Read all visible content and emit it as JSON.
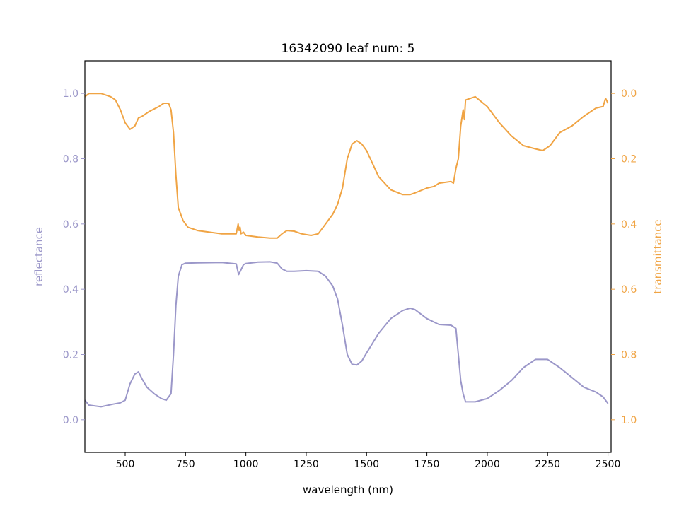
{
  "chart_data": {
    "type": "line",
    "title": "16342090 leaf num: 5",
    "xlabel": "wavelength (nm)",
    "ylabel_left": "reflectance",
    "ylabel_right": "transmittance",
    "xlim": [
      333,
      2513
    ],
    "ylim_left": [
      -0.1,
      1.1
    ],
    "ylim_right_inverted": [
      1.1,
      -0.1
    ],
    "x_ticks": [
      500,
      750,
      1000,
      1250,
      1500,
      1750,
      2000,
      2250,
      2500
    ],
    "y_ticks_left": [
      0.0,
      0.2,
      0.4,
      0.6,
      0.8,
      1.0
    ],
    "y_ticks_left_labels": [
      "0.0",
      "0.2",
      "0.4",
      "0.6",
      "0.8",
      "1.0"
    ],
    "y_ticks_right": [
      0.0,
      0.2,
      0.4,
      0.6,
      0.8,
      1.0
    ],
    "y_ticks_right_labels": [
      "0.0",
      "0.2",
      "0.4",
      "0.6",
      "0.8",
      "1.0"
    ],
    "grid": false,
    "colors": {
      "reflectance": "#9b97c9",
      "transmittance": "#f0a444",
      "axes": "#000000"
    },
    "series": [
      {
        "axis": "left",
        "x": [
          333,
          350,
          400,
          450,
          480,
          500,
          520,
          540,
          555,
          570,
          590,
          620,
          650,
          670,
          690,
          700,
          710,
          720,
          735,
          750,
          800,
          900,
          960,
          970,
          980,
          990,
          1000,
          1050,
          1100,
          1130,
          1150,
          1170,
          1200,
          1250,
          1300,
          1330,
          1360,
          1380,
          1400,
          1420,
          1440,
          1460,
          1480,
          1500,
          1550,
          1600,
          1650,
          1680,
          1700,
          1750,
          1800,
          1850,
          1870,
          1880,
          1890,
          1900,
          1910,
          1950,
          2000,
          2050,
          2100,
          2150,
          2200,
          2250,
          2300,
          2350,
          2400,
          2450,
          2480,
          2500
        ],
        "y": [
          0.06,
          0.045,
          0.04,
          0.048,
          0.052,
          0.06,
          0.11,
          0.14,
          0.147,
          0.125,
          0.1,
          0.08,
          0.065,
          0.06,
          0.08,
          0.2,
          0.35,
          0.44,
          0.475,
          0.48,
          0.481,
          0.482,
          0.478,
          0.445,
          0.46,
          0.475,
          0.479,
          0.483,
          0.484,
          0.48,
          0.462,
          0.455,
          0.455,
          0.457,
          0.455,
          0.44,
          0.41,
          0.37,
          0.29,
          0.2,
          0.17,
          0.168,
          0.18,
          0.205,
          0.265,
          0.31,
          0.335,
          0.342,
          0.338,
          0.31,
          0.292,
          0.29,
          0.28,
          0.2,
          0.12,
          0.08,
          0.055,
          0.055,
          0.065,
          0.09,
          0.12,
          0.16,
          0.185,
          0.185,
          0.16,
          0.13,
          0.1,
          0.085,
          0.07,
          0.05
        ]
      },
      {
        "axis": "right",
        "x": [
          333,
          350,
          400,
          440,
          460,
          480,
          500,
          520,
          540,
          555,
          570,
          600,
          640,
          660,
          680,
          690,
          700,
          710,
          720,
          740,
          760,
          800,
          900,
          960,
          968,
          972,
          976,
          980,
          990,
          1000,
          1050,
          1100,
          1130,
          1150,
          1170,
          1200,
          1230,
          1270,
          1300,
          1330,
          1360,
          1380,
          1400,
          1420,
          1440,
          1460,
          1480,
          1500,
          1550,
          1600,
          1650,
          1680,
          1700,
          1750,
          1780,
          1800,
          1850,
          1860,
          1870,
          1880,
          1890,
          1900,
          1905,
          1910,
          1950,
          2000,
          2050,
          2100,
          2150,
          2200,
          2230,
          2260,
          2300,
          2350,
          2400,
          2450,
          2480,
          2490,
          2500
        ],
        "y": [
          0.01,
          0.0,
          0.0,
          0.01,
          0.02,
          0.05,
          0.09,
          0.11,
          0.1,
          0.075,
          0.07,
          0.055,
          0.04,
          0.03,
          0.03,
          0.05,
          0.12,
          0.25,
          0.35,
          0.39,
          0.41,
          0.42,
          0.43,
          0.43,
          0.4,
          0.42,
          0.41,
          0.43,
          0.425,
          0.435,
          0.44,
          0.443,
          0.443,
          0.43,
          0.42,
          0.422,
          0.43,
          0.435,
          0.43,
          0.4,
          0.37,
          0.34,
          0.29,
          0.2,
          0.155,
          0.145,
          0.155,
          0.175,
          0.255,
          0.295,
          0.31,
          0.31,
          0.305,
          0.29,
          0.285,
          0.275,
          0.27,
          0.275,
          0.23,
          0.2,
          0.1,
          0.05,
          0.08,
          0.02,
          0.01,
          0.04,
          0.09,
          0.13,
          0.16,
          0.17,
          0.175,
          0.16,
          0.12,
          0.1,
          0.07,
          0.045,
          0.04,
          0.015,
          0.03
        ]
      }
    ]
  }
}
